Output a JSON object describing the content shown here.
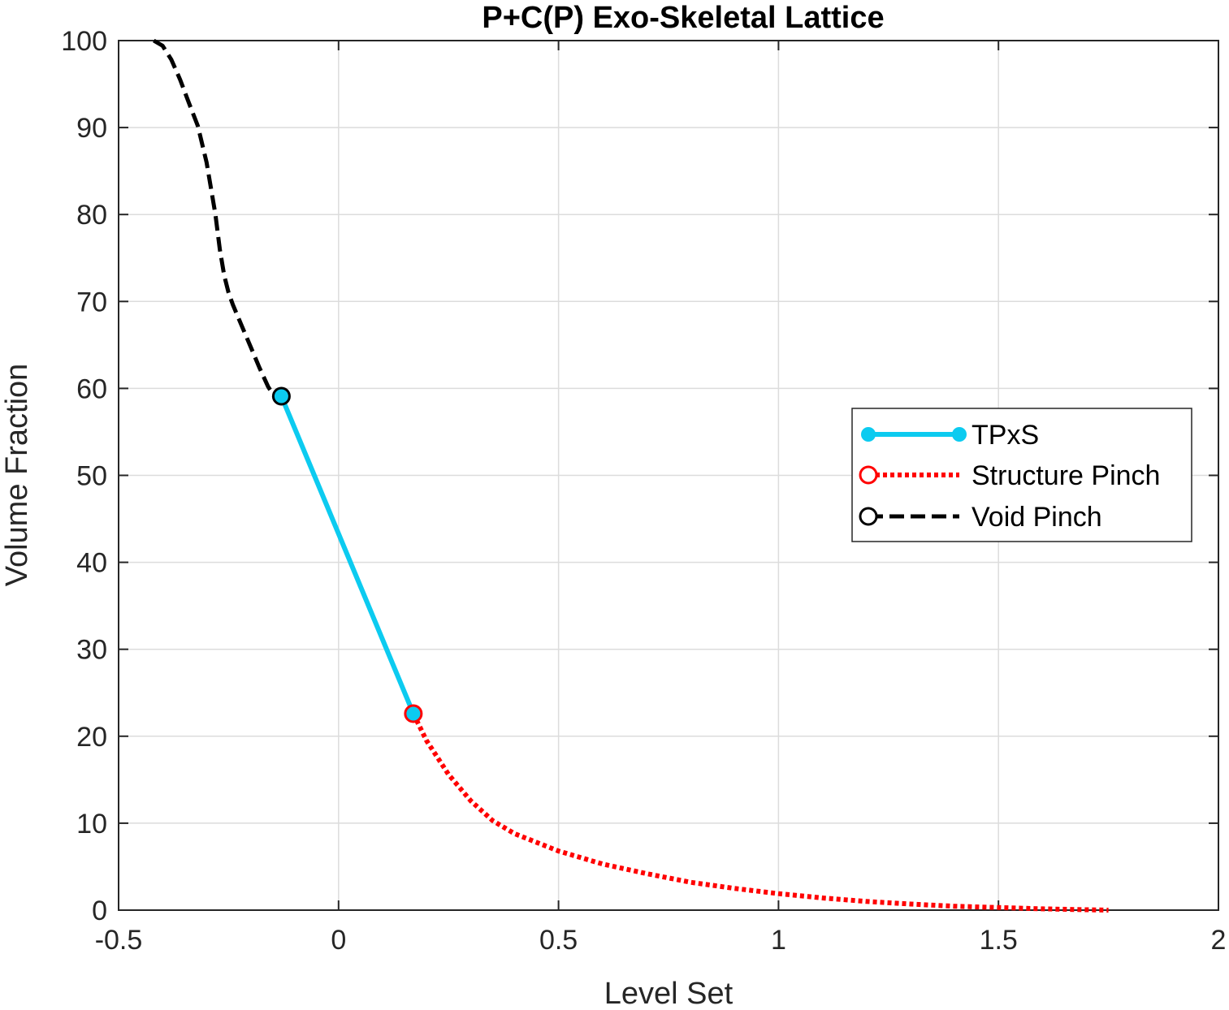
{
  "chart_data": {
    "type": "line",
    "title": "P+C(P) Exo-Skeletal Lattice",
    "xlabel": "Level Set",
    "ylabel": "Volume Fraction",
    "xlim": [
      -0.5,
      2
    ],
    "ylim": [
      0,
      100
    ],
    "xticks": [
      -0.5,
      0,
      0.5,
      1,
      1.5,
      2
    ],
    "xtick_labels": [
      "-0.5",
      "0",
      "0.5",
      "1",
      "1.5",
      "2"
    ],
    "yticks": [
      0,
      10,
      20,
      30,
      40,
      50,
      60,
      70,
      80,
      90,
      100
    ],
    "ytick_labels": [
      "0",
      "10",
      "20",
      "30",
      "40",
      "50",
      "60",
      "70",
      "80",
      "90",
      "100"
    ],
    "grid": true,
    "legend_position": "right",
    "series": [
      {
        "name": "TPxS",
        "color": "#0CCBF0",
        "line_style": "solid",
        "marker": "filled-circle",
        "x": [
          -0.13,
          0.17
        ],
        "y": [
          59.1,
          22.6
        ]
      },
      {
        "name": "Structure Pinch",
        "color": "#FF0000",
        "line_style": "dotted",
        "marker": "open-circle",
        "x": [
          0.17,
          0.2,
          0.25,
          0.3,
          0.35,
          0.4,
          0.5,
          0.6,
          0.7,
          0.8,
          0.9,
          1.0,
          1.1,
          1.2,
          1.3,
          1.4,
          1.5,
          1.6,
          1.7,
          1.75
        ],
        "y": [
          22.6,
          19.5,
          15.6,
          12.6,
          10.3,
          8.8,
          6.8,
          5.3,
          4.2,
          3.2,
          2.5,
          1.9,
          1.4,
          1.0,
          0.7,
          0.45,
          0.3,
          0.15,
          0.05,
          0.0
        ]
      },
      {
        "name": "Void Pinch",
        "color": "#000000",
        "line_style": "dashed",
        "marker": "open-circle",
        "x": [
          -0.42,
          -0.4,
          -0.38,
          -0.36,
          -0.34,
          -0.32,
          -0.3,
          -0.28,
          -0.27,
          -0.26,
          -0.25,
          -0.24,
          -0.22,
          -0.2,
          -0.18,
          -0.16,
          -0.14,
          -0.13
        ],
        "y": [
          100.0,
          99.4,
          97.8,
          95.5,
          92.8,
          90.2,
          86.0,
          80.0,
          76.0,
          73.0,
          71.0,
          69.6,
          67.2,
          64.8,
          62.4,
          60.2,
          58.6,
          59.1
        ]
      }
    ]
  }
}
